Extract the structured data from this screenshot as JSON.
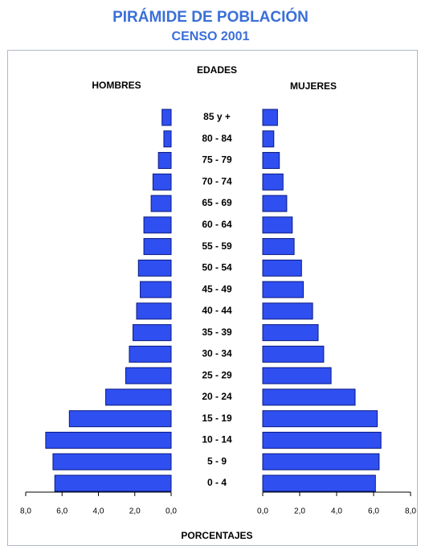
{
  "chart_data": {
    "type": "pyramid",
    "title": "PIRÁMIDE DE POBLACIÓN",
    "subtitle": "CENSO 2001",
    "y_label": "EDADES",
    "x_label": "PORCENTAJES",
    "categories": [
      "85 y +",
      "80 - 84",
      "75 - 79",
      "70 - 74",
      "65 - 69",
      "60 - 64",
      "55 - 59",
      "50 - 54",
      "45 - 49",
      "40 - 44",
      "35 - 39",
      "30 - 34",
      "25 - 29",
      "20 - 24",
      "15 - 19",
      "10 - 14",
      "5 - 9",
      "0 - 4"
    ],
    "series": [
      {
        "name": "HOMBRES",
        "color": "#2f4ff0",
        "values": [
          0.5,
          0.4,
          0.7,
          1.0,
          1.1,
          1.5,
          1.5,
          1.8,
          1.7,
          1.9,
          2.1,
          2.3,
          2.5,
          3.6,
          5.6,
          6.9,
          6.5,
          6.4
        ]
      },
      {
        "name": "MUJERES",
        "color": "#2f4ff0",
        "values": [
          0.8,
          0.6,
          0.9,
          1.1,
          1.3,
          1.6,
          1.7,
          2.1,
          2.2,
          2.7,
          3.0,
          3.3,
          3.7,
          5.0,
          6.2,
          6.4,
          6.3,
          6.1
        ]
      }
    ],
    "xlim": [
      0,
      8
    ],
    "xticks": [
      {
        "value": 0,
        "label": "0,0"
      },
      {
        "value": 2,
        "label": "2,0"
      },
      {
        "value": 4,
        "label": "4,0"
      },
      {
        "value": 6,
        "label": "6,0"
      },
      {
        "value": 8,
        "label": "8,0"
      }
    ]
  }
}
